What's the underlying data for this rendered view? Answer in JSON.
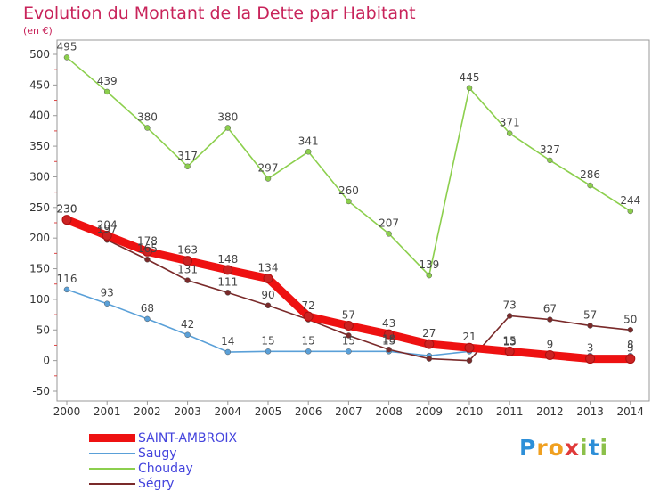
{
  "header": {
    "title": "Evolution du Montant de la Dette par Habitant",
    "unit": "(en €)"
  },
  "logo": {
    "text": "Proxiti",
    "letters": [
      {
        "ch": "P",
        "color": "#2d8fd8"
      },
      {
        "ch": "r",
        "color": "#f0a020"
      },
      {
        "ch": "o",
        "color": "#f0a020"
      },
      {
        "ch": "x",
        "color": "#e03a3a"
      },
      {
        "ch": "i",
        "color": "#8cc04a"
      },
      {
        "ch": "t",
        "color": "#2d8fd8"
      },
      {
        "ch": "i",
        "color": "#8cc04a"
      }
    ]
  },
  "chart_data": {
    "type": "line",
    "title": "Evolution du Montant de la Dette par Habitant",
    "ylabel": "(en €)",
    "xlabel": "",
    "x": [
      2000,
      2001,
      2002,
      2003,
      2004,
      2005,
      2006,
      2007,
      2008,
      2009,
      2010,
      2011,
      2012,
      2013,
      2014
    ],
    "ylim": [
      -50,
      500
    ],
    "yticks": [
      -50,
      0,
      50,
      100,
      150,
      200,
      250,
      300,
      350,
      400,
      450,
      500
    ],
    "grid": false,
    "legend_position": "bottom-left",
    "series": [
      {
        "name": "SAINT-AMBROIX",
        "color": "#ee1111",
        "emphasis": true,
        "values": [
          230,
          204,
          178,
          163,
          148,
          134,
          72,
          57,
          43,
          27,
          21,
          15,
          9,
          3,
          3
        ],
        "labels": [
          "230",
          "204",
          "178",
          "163",
          "148",
          "134",
          "72",
          "57",
          "43",
          "27",
          "21",
          "15",
          "9",
          "3",
          "3"
        ]
      },
      {
        "name": "Saugy",
        "color": "#5aa0d8",
        "emphasis": false,
        "values": [
          116,
          93,
          68,
          42,
          14,
          15,
          15,
          15,
          15,
          8,
          15,
          13,
          9,
          8,
          8
        ],
        "labels": [
          "116",
          "93",
          "68",
          "42",
          "14",
          "15",
          "15",
          "15",
          "15",
          "",
          "",
          "13",
          "",
          "",
          "8"
        ]
      },
      {
        "name": "Chouday",
        "color": "#8ccf4d",
        "emphasis": false,
        "values": [
          495,
          439,
          380,
          317,
          380,
          297,
          341,
          260,
          207,
          139,
          445,
          371,
          327,
          286,
          244
        ],
        "labels": [
          "495",
          "439",
          "380",
          "317",
          "380",
          "297",
          "341",
          "260",
          "207",
          "139",
          "445",
          "371",
          "327",
          "286",
          "244"
        ]
      },
      {
        "name": "Ségry",
        "color": "#7a2a2a",
        "emphasis": false,
        "values": [
          230,
          197,
          165,
          131,
          111,
          90,
          67,
          41,
          18,
          3,
          0,
          73,
          67,
          57,
          50
        ],
        "labels": [
          "230",
          "197",
          "165",
          "131",
          "111",
          "90",
          "",
          "",
          "18",
          "",
          "",
          "73",
          "67",
          "57",
          "50"
        ]
      }
    ]
  }
}
